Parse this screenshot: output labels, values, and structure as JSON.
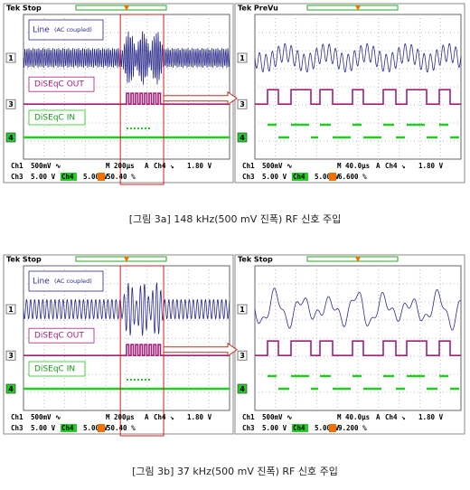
{
  "figures": [
    {
      "panels": [
        {
          "header": "Tek Stop",
          "labels": [
            "Line",
            "(AC coupled)",
            "DiSEqC OUT",
            "DiSEqC IN"
          ],
          "markers": [
            "1",
            "3",
            "4"
          ],
          "status_row1": [
            "Ch1",
            "500mV ∿",
            "M 200µs",
            "A",
            "Ch4 ↘",
            "1.80 V"
          ],
          "status_row2": [
            "Ch3",
            "5.00 V",
            "Ch4",
            "5.00 V"
          ],
          "position": "50.40 %"
        },
        {
          "header": "Tek PreVu",
          "markers": [
            "1",
            "3",
            "4"
          ],
          "status_row1": [
            "Ch1",
            "500mV ∿",
            "M 40.0µs",
            "A",
            "Ch4 ↘",
            "1.80 V"
          ],
          "status_row2": [
            "Ch3",
            "5.00 V",
            "Ch4",
            "5.00 V"
          ],
          "position": "6.600 %"
        }
      ],
      "caption": "[그림 3a] 148 kHz(500 mV 진폭) RF 신호 주입"
    },
    {
      "panels": [
        {
          "header": "Tek Stop",
          "labels": [
            "Line",
            "(AC coupled)",
            "DiSEqC OUT",
            "DiSEqC IN"
          ],
          "markers": [
            "1",
            "3",
            "4"
          ],
          "status_row1": [
            "Ch1",
            "500mV ∿",
            "M 200µs",
            "A",
            "Ch4 ↘",
            "1.80 V"
          ],
          "status_row2": [
            "Ch3",
            "5.00 V",
            "Ch4",
            "5.00 V"
          ],
          "position": "50.40 %"
        },
        {
          "header": "Tek Stop",
          "markers": [
            "1",
            "3",
            "4"
          ],
          "status_row1": [
            "Ch1",
            "500mV ∿",
            "M 40.0µs",
            "A",
            "Ch4 ↘",
            "1.80 V"
          ],
          "status_row2": [
            "Ch3",
            "5.00 V",
            "Ch4",
            "5.00 V"
          ],
          "position": "9.200 %"
        }
      ],
      "caption": "[그림 3b] 37 kHz(500 mV 진폭) RF 신호 주입"
    }
  ]
}
